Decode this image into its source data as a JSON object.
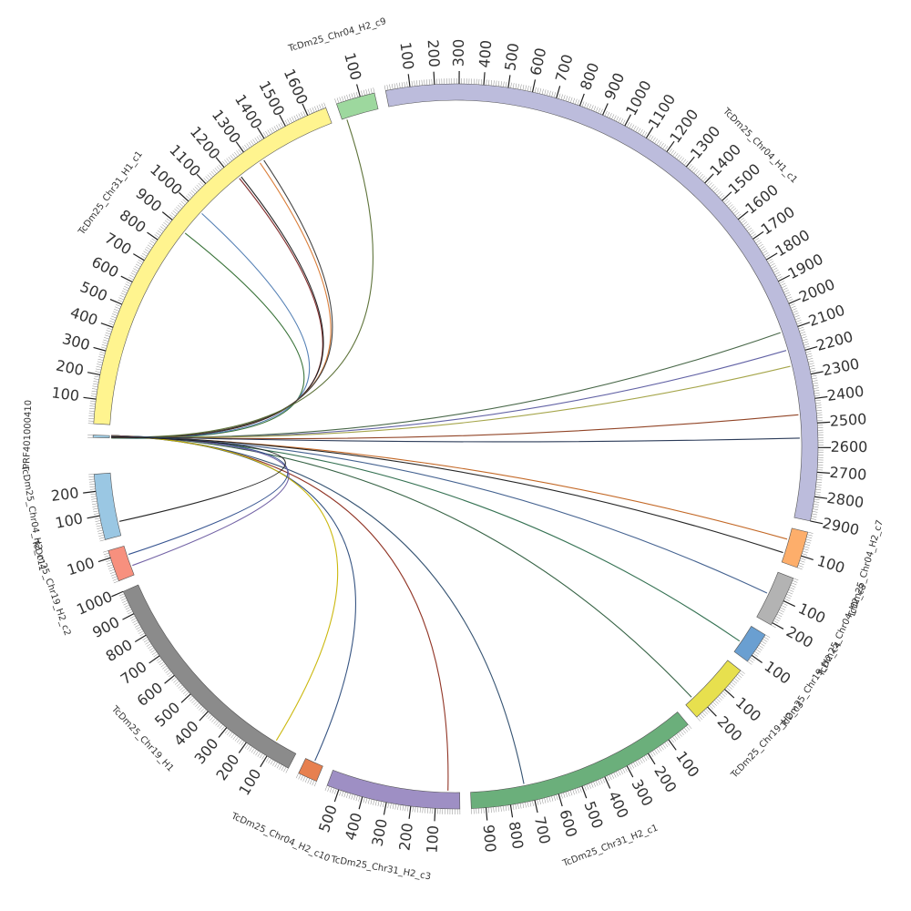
{
  "diagram": {
    "segments": [
      {
        "name": "PRF401000410",
        "length": 10,
        "color": "#9ecae1",
        "tick_step": 100
      },
      {
        "name": "TcDm25_Chr31_H1_c1",
        "length": 1680,
        "color": "#fff48f",
        "tick_step": 100
      },
      {
        "name": "TcDm25_Chr04_H2_c9",
        "length": 160,
        "color": "#9dd89e",
        "tick_step": 100
      },
      {
        "name": "TcDm25_Chr04_H1_c1",
        "length": 2900,
        "color": "#bcbcdc",
        "tick_step": 100
      },
      {
        "name": "TcDm25_Chr04_H2_c7",
        "length": 150,
        "color": "#fdae6b",
        "tick_step": 100
      },
      {
        "name": "TcDm25_Chr04_H2_c8",
        "length": 210,
        "color": "#b3b3b3",
        "tick_step": 100
      },
      {
        "name": "TcDm25_Chr19_H2_c4",
        "length": 130,
        "color": "#6a9fd1",
        "tick_step": 100
      },
      {
        "name": "TcDm25_Chr19_H2_c3",
        "length": 260,
        "color": "#e7e04e",
        "tick_step": 100
      },
      {
        "name": "TcDm25_Chr31_H2_c1",
        "length": 960,
        "color": "#6baf7b",
        "tick_step": 100
      },
      {
        "name": "TcDm25_Chr31_H2_c3",
        "length": 550,
        "color": "#9e8fc4",
        "tick_step": 100
      },
      {
        "name": "TcDm25_Chr04_H2_c10",
        "length": 80,
        "color": "#e7804f",
        "tick_step": 100
      },
      {
        "name": "TcDm25_Chr19_H1",
        "length": 1000,
        "color": "#8b8b8b",
        "tick_step": 100
      },
      {
        "name": "TcDm25_Chr19_H2_c2",
        "length": 130,
        "color": "#f7907e",
        "tick_step": 100
      },
      {
        "name": "TcDm25_Chr04_H2_c11",
        "length": 270,
        "color": "#9ac7e3",
        "tick_step": 100
      }
    ],
    "links": [
      {
        "from": 1,
        "from_pos": 890,
        "to_pos": 1,
        "color": "#2d6a2d"
      },
      {
        "from": 1,
        "from_pos": 1000,
        "to_pos": 2,
        "color": "#4a78b0"
      },
      {
        "from": 1,
        "from_pos": 1220,
        "to_pos": 3,
        "color": "#7a1f1f"
      },
      {
        "from": 1,
        "from_pos": 1230,
        "to_pos": 3,
        "color": "#1a1a1a"
      },
      {
        "from": 1,
        "from_pos": 1330,
        "to_pos": 4,
        "color": "#d9772e"
      },
      {
        "from": 1,
        "from_pos": 1350,
        "to_pos": 4,
        "color": "#3a3a3a"
      },
      {
        "from": 2,
        "from_pos": 20,
        "to_pos": 5,
        "color": "#556b2f"
      },
      {
        "from": 3,
        "from_pos": 2100,
        "to_pos": 6,
        "color": "#3e5f3e"
      },
      {
        "from": 3,
        "from_pos": 2180,
        "to_pos": 6,
        "color": "#5a5aa0"
      },
      {
        "from": 3,
        "from_pos": 2250,
        "to_pos": 7,
        "color": "#a0a040"
      },
      {
        "from": 3,
        "from_pos": 2460,
        "to_pos": 7,
        "color": "#8b3a1a"
      },
      {
        "from": 3,
        "from_pos": 2560,
        "to_pos": 8,
        "color": "#203050"
      },
      {
        "from": 4,
        "from_pos": 50,
        "to_pos": 8,
        "color": "#c0601a"
      },
      {
        "from": 4,
        "from_pos": 110,
        "to_pos": 9,
        "color": "#1a1a1a"
      },
      {
        "from": 5,
        "from_pos": 100,
        "to_pos": 9,
        "color": "#3a5a8a"
      },
      {
        "from": 6,
        "from_pos": 80,
        "to_pos": 9,
        "color": "#2a6a4a"
      },
      {
        "from": 7,
        "from_pos": 220,
        "to_pos": 9,
        "color": "#2a5a3a"
      },
      {
        "from": 8,
        "from_pos": 730,
        "to_pos": 9,
        "color": "#2a4a6a"
      },
      {
        "from": 9,
        "from_pos": 50,
        "to_pos": 9,
        "color": "#8b2a1a"
      },
      {
        "from": 10,
        "from_pos": 40,
        "to_pos": 8,
        "color": "#2a4a7a"
      },
      {
        "from": 11,
        "from_pos": 100,
        "to_pos": 8,
        "color": "#c8b400"
      },
      {
        "from": 12,
        "from_pos": 90,
        "to_pos": 7,
        "color": "#2a4a8a"
      },
      {
        "from": 12,
        "from_pos": 40,
        "to_pos": 7,
        "color": "#6a5aa0"
      },
      {
        "from": 13,
        "from_pos": 60,
        "to_pos": 6,
        "color": "#1a1a1a"
      }
    ]
  }
}
